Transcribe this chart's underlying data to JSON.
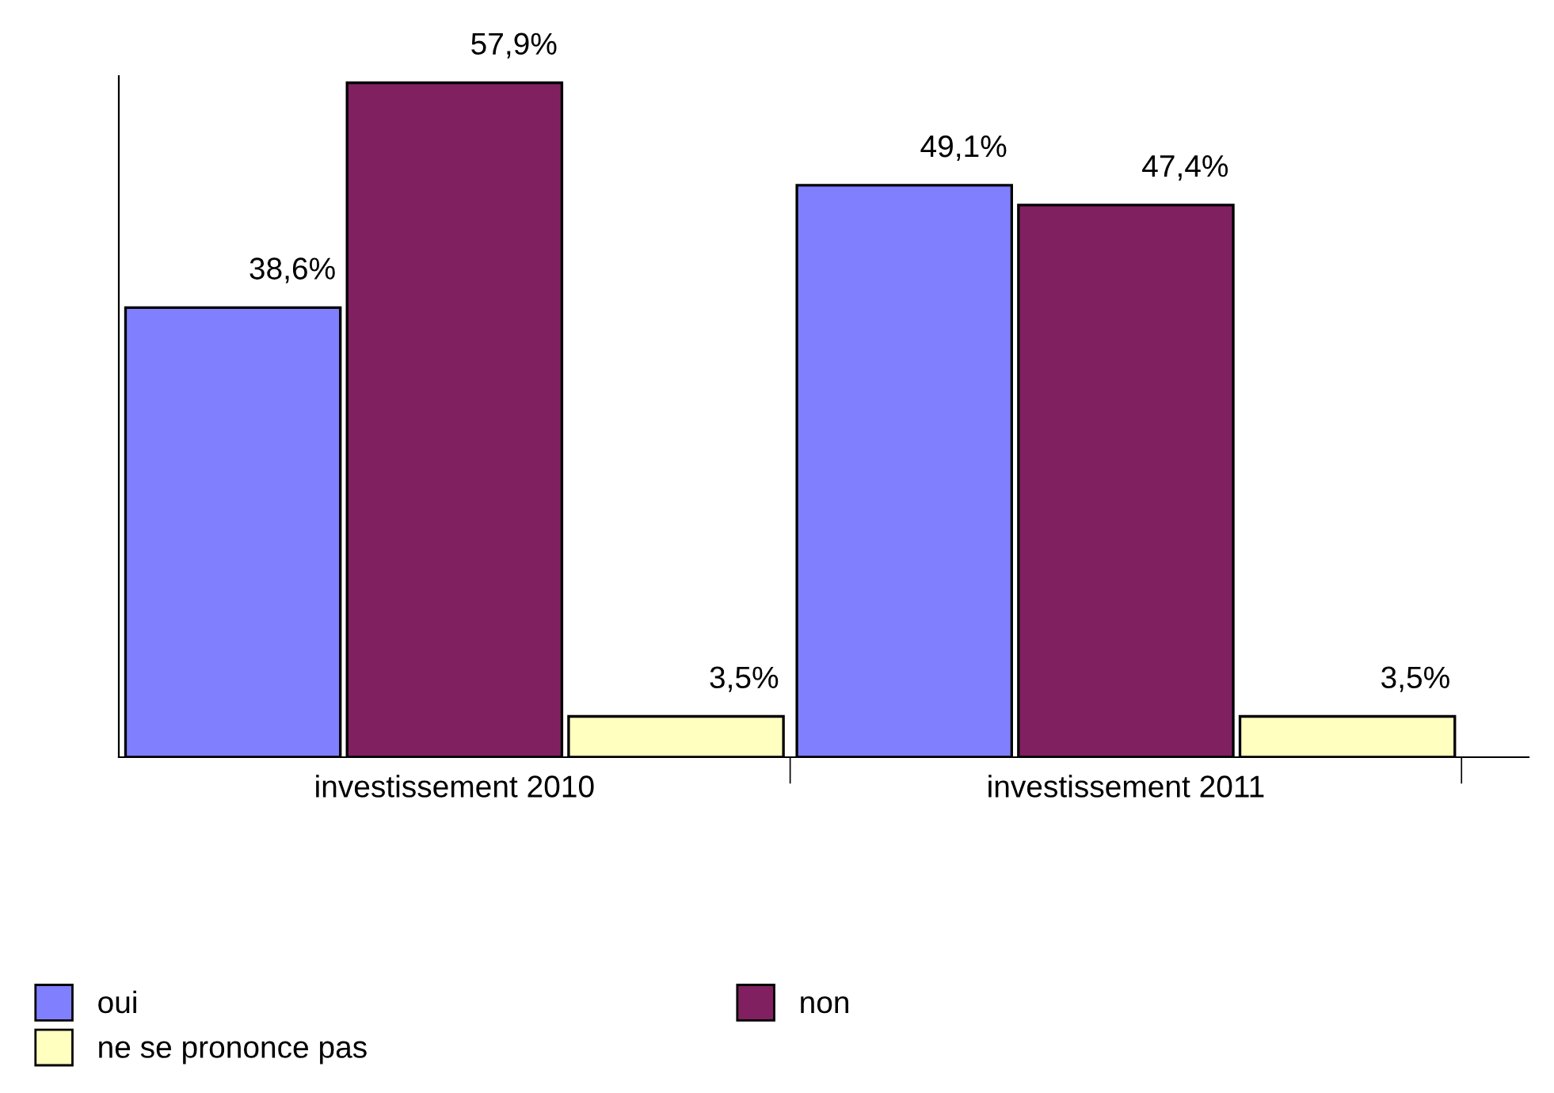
{
  "chart_data": {
    "type": "bar",
    "categories": [
      "investissement 2010",
      "investissement 2011"
    ],
    "series": [
      {
        "name": "oui",
        "color": "#8080ff",
        "values": [
          38.6,
          49.1
        ],
        "value_labels": [
          "38,6%",
          "49,1%"
        ]
      },
      {
        "name": "non",
        "color": "#802060",
        "values": [
          57.9,
          47.4
        ],
        "value_labels": [
          "57,9%",
          "47,4%"
        ]
      },
      {
        "name": "ne se prononce pas",
        "color": "#ffffc0",
        "values": [
          3.5,
          3.5
        ],
        "value_labels": [
          "3,5%",
          "3,5%"
        ]
      }
    ],
    "legend": "bottom left",
    "grid": false,
    "tick_labels": "x"
  }
}
